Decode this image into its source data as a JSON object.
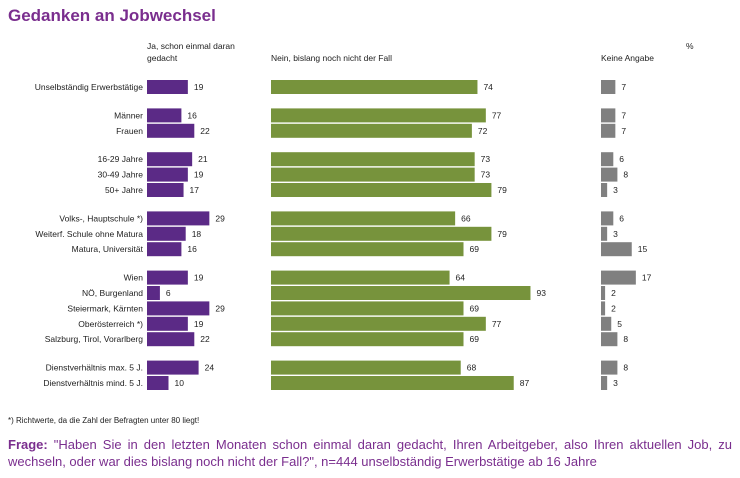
{
  "title": "Gedanken an Jobwechsel",
  "headers": {
    "ja": "Ja, schon einmal daran gedacht",
    "nein": "Nein, bislang noch nicht der Fall",
    "keine": "Keine Angabe",
    "unit": "%"
  },
  "footnote": "*) Richtwerte, da die Zahl der Befragten unter 80 liegt!",
  "question": {
    "prefix": "Frage:",
    "text": "\"Haben Sie in den letzten Monaten schon einmal daran gedacht, Ihren Arbeitgeber, also Ihren aktuellen Job, zu wechseln, oder war dies bislang noch nicht der Fall?\", n=444 unselbständig Erwerbstätige ab 16 Jahre"
  },
  "colors": {
    "ja": "#5b2a86",
    "nein": "#77933c",
    "keine": "#808080",
    "title": "#7a2e8e"
  },
  "chart_data": {
    "type": "bar",
    "orientation": "horizontal",
    "stacked": false,
    "unit": "%",
    "categories": [
      "Unselbständig Erwerbstätige",
      "Männer",
      "Frauen",
      "16-29 Jahre",
      "30-49 Jahre",
      "50+ Jahre",
      "Volks-, Hauptschule *)",
      "Weiterf. Schule ohne Matura",
      "Matura, Universität",
      "Wien",
      "NÖ, Burgenland",
      "Steiermark, Kärnten",
      "Oberösterreich *)",
      "Salzburg, Tirol, Vorarlberg",
      "Dienstverhältnis max. 5 J.",
      "Dienstverhältnis mind. 5 J."
    ],
    "groups": [
      [
        0
      ],
      [
        1,
        2
      ],
      [
        3,
        4,
        5
      ],
      [
        6,
        7,
        8
      ],
      [
        9,
        10,
        11,
        12,
        13
      ],
      [
        14,
        15
      ]
    ],
    "series": [
      {
        "name": "Ja, schon einmal daran gedacht",
        "values": [
          19,
          16,
          22,
          21,
          19,
          17,
          29,
          18,
          16,
          19,
          6,
          29,
          19,
          22,
          24,
          10
        ]
      },
      {
        "name": "Nein, bislang noch nicht der Fall",
        "values": [
          74,
          77,
          72,
          73,
          73,
          79,
          66,
          79,
          69,
          64,
          93,
          69,
          77,
          69,
          68,
          87
        ]
      },
      {
        "name": "Keine Angabe",
        "values": [
          7,
          7,
          7,
          6,
          8,
          3,
          6,
          3,
          15,
          17,
          2,
          2,
          5,
          8,
          8,
          3
        ]
      }
    ]
  }
}
